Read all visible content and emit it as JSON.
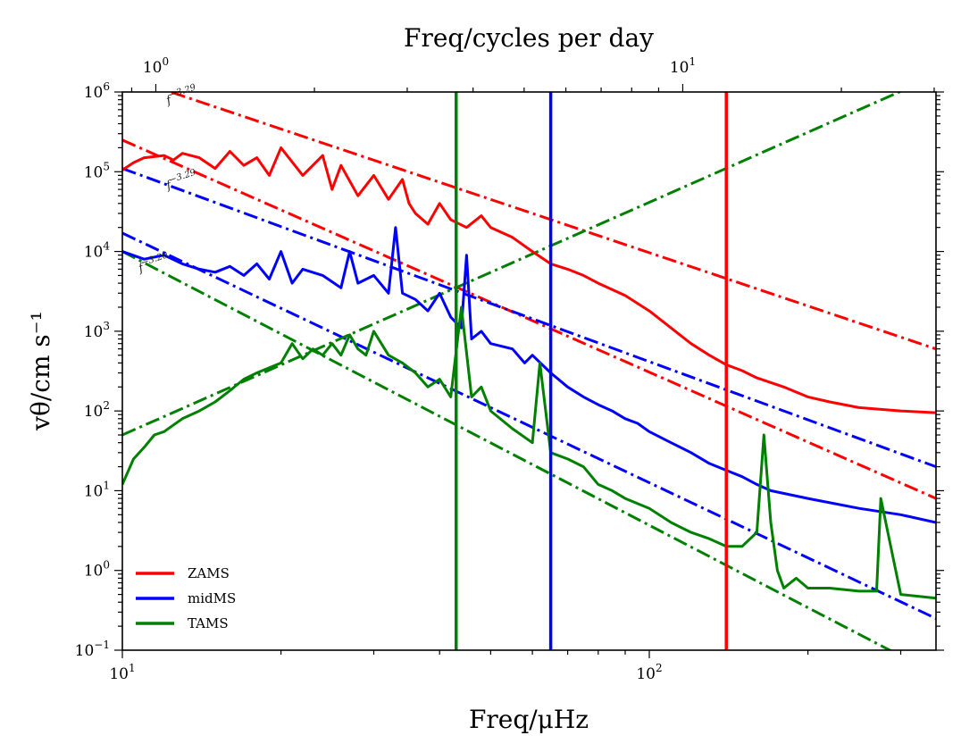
{
  "chart_data": {
    "type": "line",
    "title": "",
    "xlabel": "Freq/μHz",
    "ylabel": "vθ/cm s⁻¹",
    "top_xlabel": "Freq/cycles per day",
    "xscale": "log",
    "yscale": "log",
    "xlim": [
      10,
      350
    ],
    "ylim": [
      0.1,
      1000000
    ],
    "top_xlim": [
      0.864,
      30.24
    ],
    "x_ticks": [
      {
        "value": 10,
        "base": "10",
        "exp": "1"
      },
      {
        "value": 100,
        "base": "10",
        "exp": "2"
      }
    ],
    "y_ticks": [
      {
        "value": 0.1,
        "base": "10",
        "exp": "−1"
      },
      {
        "value": 1,
        "base": "10",
        "exp": "0"
      },
      {
        "value": 10,
        "base": "10",
        "exp": "1"
      },
      {
        "value": 100,
        "base": "10",
        "exp": "2"
      },
      {
        "value": 1000,
        "base": "10",
        "exp": "3"
      },
      {
        "value": 10000,
        "base": "10",
        "exp": "4"
      },
      {
        "value": 100000,
        "base": "10",
        "exp": "5"
      },
      {
        "value": 1000000,
        "base": "10",
        "exp": "6"
      }
    ],
    "top_ticks": [
      {
        "value": 1,
        "base": "10",
        "exp": "0"
      },
      {
        "value": 10,
        "base": "10",
        "exp": "1"
      }
    ],
    "legend": {
      "location": "lower-left"
    },
    "series": [
      {
        "name": "ZAMS",
        "color": "#ff0000",
        "x": [
          10,
          10.5,
          11,
          12,
          12.5,
          13,
          14,
          15,
          16,
          17,
          18,
          19,
          20,
          22,
          24,
          25,
          26,
          28,
          30,
          32,
          34,
          35,
          36,
          38,
          40,
          42,
          45,
          48,
          50,
          55,
          60,
          65,
          70,
          75,
          80,
          90,
          100,
          110,
          120,
          130,
          140,
          150,
          160,
          180,
          200,
          220,
          250,
          300,
          350
        ],
        "y": [
          105000,
          130000,
          150000,
          160000,
          140000,
          170000,
          150000,
          110000,
          180000,
          120000,
          150000,
          90000,
          200000,
          90000,
          160000,
          60000,
          120000,
          50000,
          90000,
          45000,
          80000,
          40000,
          30000,
          22000,
          40000,
          25000,
          20000,
          28000,
          20000,
          15000,
          10000,
          7000,
          6000,
          5000,
          4000,
          2800,
          1800,
          1100,
          700,
          500,
          380,
          320,
          260,
          200,
          150,
          130,
          110,
          100,
          95
        ]
      },
      {
        "name": "midMS",
        "color": "#0000ff",
        "x": [
          10,
          11,
          12,
          13,
          14,
          15,
          16,
          17,
          18,
          19,
          20,
          21,
          22,
          24,
          26,
          27,
          28,
          30,
          32,
          33,
          34,
          36,
          38,
          40,
          42,
          44,
          45,
          46,
          48,
          50,
          55,
          58,
          60,
          65,
          70,
          75,
          80,
          85,
          90,
          95,
          100,
          110,
          120,
          130,
          140,
          150,
          160,
          170,
          200,
          250,
          300,
          350
        ],
        "y": [
          10000,
          8000,
          9000,
          7000,
          6000,
          5500,
          6500,
          5000,
          7000,
          4500,
          10000,
          4000,
          6000,
          5000,
          3500,
          10000,
          4000,
          5000,
          3000,
          20000,
          3000,
          2500,
          1800,
          3000,
          1500,
          1100,
          9000,
          800,
          1000,
          700,
          600,
          400,
          500,
          300,
          200,
          150,
          120,
          100,
          80,
          70,
          55,
          40,
          30,
          22,
          18,
          15,
          12,
          10,
          8,
          6,
          5,
          4
        ]
      },
      {
        "name": "TAMS",
        "color": "#008000",
        "x": [
          10,
          10.5,
          11,
          11.5,
          12,
          13,
          14,
          15,
          16,
          17,
          18,
          20,
          21,
          22,
          23,
          24,
          25,
          26,
          27,
          28,
          29,
          30,
          32,
          34,
          36,
          38,
          40,
          42,
          44,
          46,
          48,
          50,
          55,
          60,
          62,
          65,
          70,
          75,
          80,
          85,
          90,
          100,
          110,
          120,
          130,
          140,
          150,
          160,
          165,
          170,
          175,
          180,
          190,
          200,
          220,
          250,
          270,
          275,
          300,
          350
        ],
        "y": [
          12,
          25,
          35,
          50,
          55,
          80,
          100,
          130,
          180,
          250,
          300,
          400,
          700,
          450,
          600,
          500,
          700,
          500,
          900,
          600,
          500,
          1000,
          500,
          400,
          300,
          200,
          250,
          150,
          2000,
          150,
          200,
          100,
          60,
          40,
          400,
          30,
          25,
          20,
          12,
          10,
          8,
          6,
          4,
          3,
          2.5,
          2,
          2,
          3,
          50,
          4,
          1,
          0.6,
          0.8,
          0.6,
          0.6,
          0.55,
          0.55,
          8,
          0.5,
          0.45
        ]
      }
    ],
    "fits": [
      {
        "name": "ZAMS-fit-1",
        "color": "#ff0000",
        "x": [
          10,
          350
        ],
        "y": [
          1600000,
          600
        ]
      },
      {
        "name": "ZAMS-fit-2",
        "color": "#ff0000",
        "x": [
          10,
          350
        ],
        "y": [
          250000,
          8
        ]
      },
      {
        "name": "midMS-fit-1",
        "color": "#0000ff",
        "x": [
          10,
          350
        ],
        "y": [
          110000,
          20
        ]
      },
      {
        "name": "midMS-fit-2",
        "color": "#0000ff",
        "x": [
          10,
          350
        ],
        "y": [
          17000,
          0.25
        ]
      },
      {
        "name": "TAMS-fit-1",
        "color": "#008000",
        "x": [
          10,
          350
        ],
        "y": [
          10000,
          0.05
        ]
      },
      {
        "name": "TAMS-fit-2",
        "color": "#008000",
        "x": [
          10,
          350
        ],
        "y": [
          50,
          1600000
        ]
      }
    ],
    "vlines": [
      {
        "name": "TAMS-vline",
        "x": 43,
        "color": "#008000"
      },
      {
        "name": "midMS-vline",
        "x": 65,
        "color": "#0000ff"
      },
      {
        "name": "ZAMS-vline",
        "x": 140,
        "color": "#ff0000"
      }
    ],
    "annotations": [
      {
        "name": "annot-zams-slope",
        "text": "f−3.29",
        "base": "f",
        "exp": "−3.29",
        "x": 12.2,
        "y": 700000
      },
      {
        "name": "annot-midms-slope",
        "text": "f−3.29",
        "base": "f",
        "exp": "−3.29",
        "x": 12.2,
        "y": 60000
      },
      {
        "name": "annot-tams-slope",
        "text": "f−3.20",
        "base": "f",
        "exp": "−3.20",
        "x": 10.8,
        "y": 5500
      }
    ]
  }
}
